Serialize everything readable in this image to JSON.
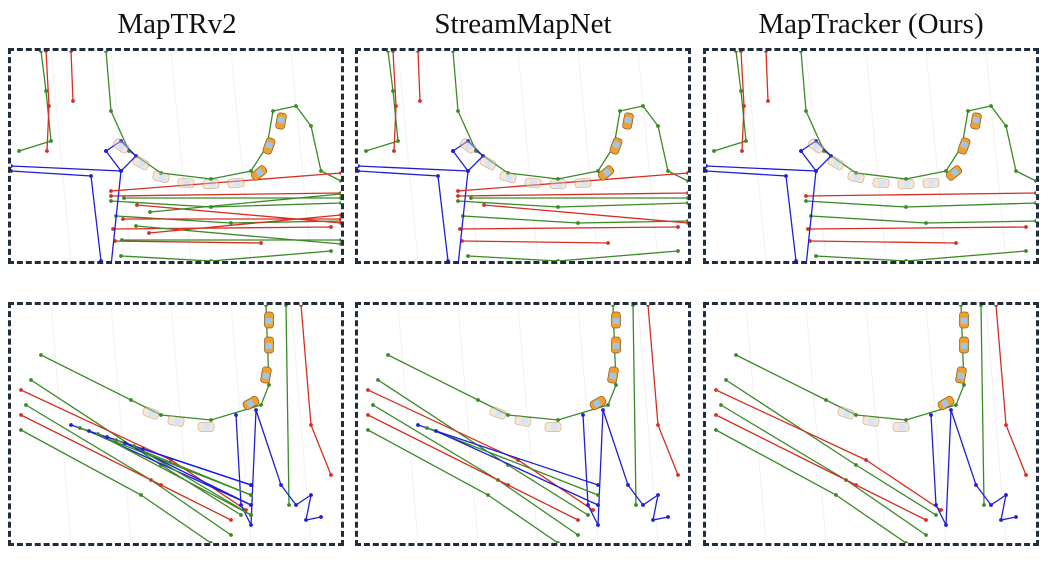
{
  "figure": {
    "columns": [
      {
        "title": "MapTRv2"
      },
      {
        "title": "StreamMapNet"
      },
      {
        "title": "MapTracker (Ours)"
      }
    ]
  },
  "legend_colors": {
    "divider": "#d62f22",
    "boundary": "#3b8a26",
    "ped_crossing": "#1f1fd6",
    "ego_vehicle": "#f0a030",
    "ego_trail": "#e9c9a8",
    "frame_border": "#1f2e3a"
  }
}
